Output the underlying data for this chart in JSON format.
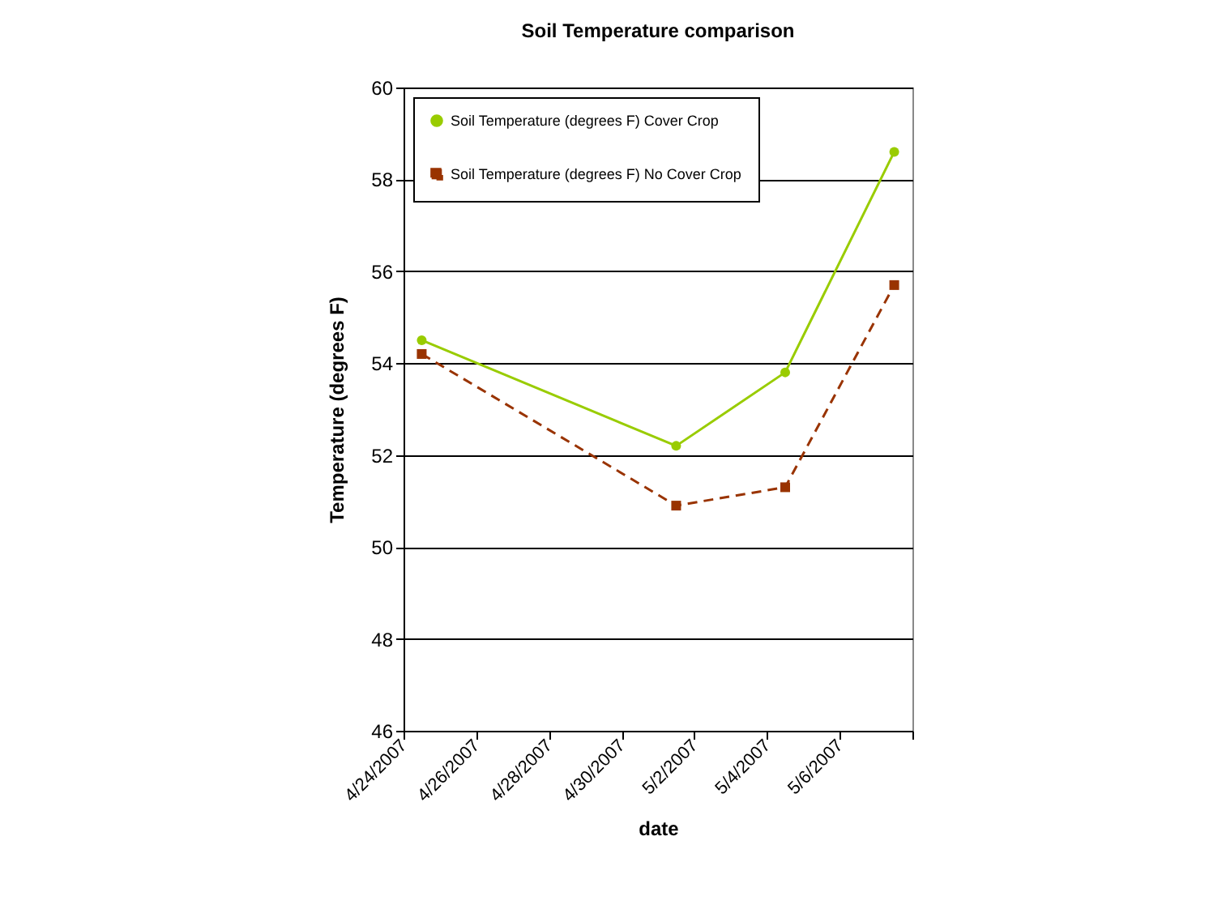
{
  "chart_data": {
    "type": "line",
    "title": "Soil Temperature comparison",
    "xlabel": "date",
    "ylabel": "Temperature (degrees F)",
    "x": [
      "2007-04-24T12:00",
      "2007-05-01T12:00",
      "2007-05-04T12:00",
      "2007-05-07T12:00"
    ],
    "series": [
      {
        "name": "Soil Temperature (degrees F) Cover Crop",
        "color": "#99cc00",
        "values": [
          54.5,
          52.2,
          53.8,
          58.6
        ],
        "marker": "circle",
        "line_style": "solid"
      },
      {
        "name": "Soil Temperature (degrees F) No Cover Crop",
        "color": "#993300",
        "values": [
          54.2,
          50.9,
          51.3,
          55.7
        ],
        "marker": "square",
        "line_style": "dashed"
      }
    ],
    "xlim": [
      "2007-04-24",
      "2007-05-08"
    ],
    "xticks": [
      {
        "value": "2007-04-24",
        "label": "4/24/2007"
      },
      {
        "value": "2007-04-26",
        "label": "4/26/2007"
      },
      {
        "value": "2007-04-28",
        "label": "4/28/2007"
      },
      {
        "value": "2007-04-30",
        "label": "4/30/2007"
      },
      {
        "value": "2007-05-02",
        "label": "5/2/2007"
      },
      {
        "value": "2007-05-04",
        "label": "5/4/2007"
      },
      {
        "value": "2007-05-06",
        "label": "5/6/2007"
      },
      {
        "value": "2007-05-08",
        "label": null
      }
    ],
    "ylim": [
      46,
      60
    ],
    "yticks": [
      46,
      48,
      50,
      52,
      54,
      56,
      58,
      60
    ],
    "grid": "y",
    "legend": "top left"
  }
}
